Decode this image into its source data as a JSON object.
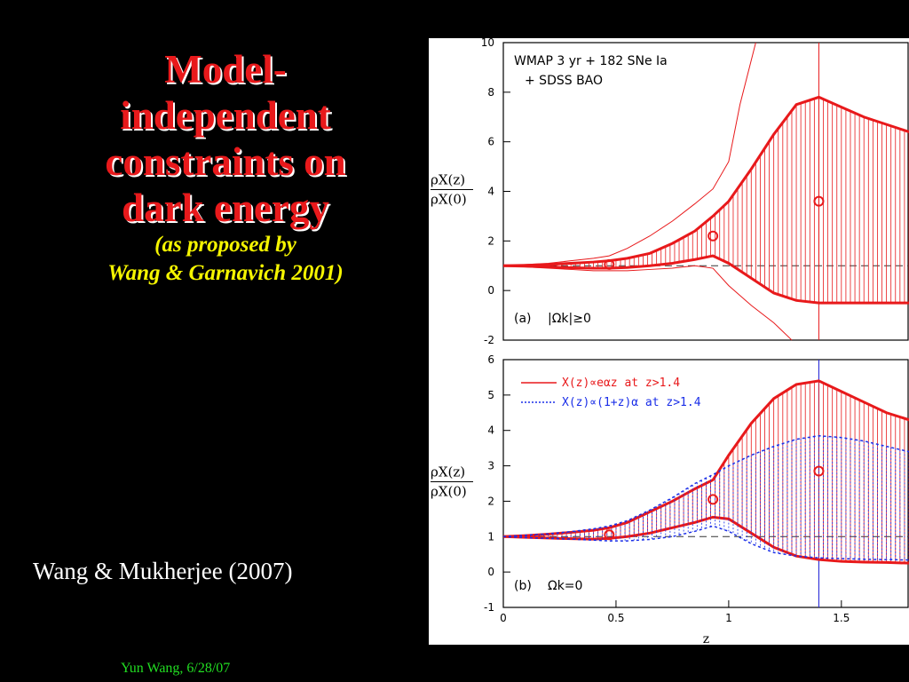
{
  "title_lines": [
    "Model-",
    "independent",
    "constraints on",
    "dark energy"
  ],
  "subtitle_lines": [
    "(as proposed by",
    "Wang & Garnavich 2001)"
  ],
  "citation": "Wang & Mukherjee (2007)",
  "footer": "Yun Wang,  6/28/07",
  "colors": {
    "title": "#e8191b",
    "subtitle": "#f5f500",
    "footer": "#22dd22",
    "series_red": "#e8191b",
    "series_blue": "#1a2ee8"
  },
  "chart_data": [
    {
      "type": "line",
      "panel": "(a)",
      "panel_label": "|Ωk|≥0",
      "annotation_lines": [
        "WMAP 3 yr + 182 SNe Ia",
        "+ SDSS BAO"
      ],
      "ylabel_num": "ρX(z)",
      "ylabel_den": "ρX(0)",
      "xlim": [
        0,
        1.8
      ],
      "ylim": [
        -2,
        10
      ],
      "yticks": [
        -2,
        0,
        2,
        4,
        6,
        8,
        10
      ],
      "reference_line": 1,
      "series": [
        {
          "color": "#e8191b",
          "x": [
            0,
            0.1,
            0.2,
            0.3,
            0.4,
            0.47,
            0.55,
            0.65,
            0.75,
            0.85,
            0.93,
            1.0,
            1.1,
            1.2,
            1.3,
            1.4,
            1.5,
            1.6,
            1.7,
            1.8
          ],
          "upper68": [
            1.0,
            1.02,
            1.05,
            1.1,
            1.15,
            1.2,
            1.3,
            1.5,
            1.9,
            2.4,
            3.0,
            3.6,
            4.9,
            6.3,
            7.5,
            7.8,
            7.4,
            7.0,
            6.7,
            6.4
          ],
          "lower68": [
            1.0,
            0.98,
            0.95,
            0.92,
            0.9,
            0.9,
            0.93,
            1.0,
            1.1,
            1.25,
            1.4,
            1.1,
            0.5,
            -0.1,
            -0.4,
            -0.5,
            -0.5,
            -0.5,
            -0.5,
            -0.5
          ],
          "upper95": [
            1.0,
            1.05,
            1.1,
            1.2,
            1.3,
            1.4,
            1.7,
            2.2,
            2.8,
            3.5,
            4.1,
            5.2,
            7.5,
            10
          ],
          "x95": [
            0,
            0.1,
            0.2,
            0.3,
            0.4,
            0.47,
            0.55,
            0.65,
            0.75,
            0.85,
            0.93,
            1.0,
            1.05,
            1.12
          ],
          "lower95": [
            1.0,
            0.95,
            0.9,
            0.85,
            0.8,
            0.8,
            0.8,
            0.85,
            0.9,
            1.0,
            0.9,
            0.2,
            -0.6,
            -1.3,
            -2.0
          ],
          "xlow95": [
            0,
            0.1,
            0.2,
            0.3,
            0.4,
            0.47,
            0.55,
            0.65,
            0.75,
            0.85,
            0.93,
            1.0,
            1.1,
            1.2,
            1.28
          ]
        }
      ],
      "points": [
        {
          "x": 0.47,
          "y": 1.05,
          "color": "#e8191b"
        },
        {
          "x": 0.93,
          "y": 2.2,
          "color": "#e8191b"
        },
        {
          "x": 1.4,
          "y": 3.6,
          "color": "#e8191b"
        }
      ]
    },
    {
      "type": "line",
      "panel": "(b)",
      "panel_label": "Ωk=0",
      "ylabel_num": "ρX(z)",
      "ylabel_den": "ρX(0)",
      "xlabel": "z",
      "xlim": [
        0,
        1.8
      ],
      "ylim": [
        -1,
        6
      ],
      "xticks": [
        0,
        0.5,
        1,
        1.5
      ],
      "yticks": [
        -1,
        0,
        1,
        2,
        3,
        4,
        5,
        6
      ],
      "reference_line": 1,
      "legend": [
        {
          "label": "X(z)∝eαz at z>1.4",
          "color": "#e8191b",
          "dash": "solid"
        },
        {
          "label": "X(z)∝(1+z)α at z>1.4",
          "color": "#1a2ee8",
          "dash": "dotted"
        }
      ],
      "series": [
        {
          "color": "#e8191b",
          "x": [
            0,
            0.1,
            0.2,
            0.3,
            0.4,
            0.47,
            0.55,
            0.65,
            0.75,
            0.85,
            0.93,
            1.0,
            1.1,
            1.2,
            1.3,
            1.4,
            1.5,
            1.6,
            1.7,
            1.8
          ],
          "upper68": [
            1.0,
            1.03,
            1.07,
            1.12,
            1.18,
            1.25,
            1.4,
            1.7,
            2.0,
            2.35,
            2.6,
            3.3,
            4.2,
            4.9,
            5.3,
            5.4,
            5.1,
            4.8,
            4.5,
            4.3
          ],
          "lower68": [
            1.0,
            0.98,
            0.96,
            0.94,
            0.93,
            0.95,
            1.0,
            1.1,
            1.25,
            1.4,
            1.55,
            1.5,
            1.1,
            0.7,
            0.45,
            0.35,
            0.3,
            0.28,
            0.27,
            0.25
          ]
        },
        {
          "color": "#1a2ee8",
          "x": [
            0,
            0.1,
            0.2,
            0.3,
            0.4,
            0.47,
            0.55,
            0.65,
            0.75,
            0.85,
            0.93,
            1.0,
            1.1,
            1.2,
            1.3,
            1.4,
            1.5,
            1.6,
            1.7,
            1.8
          ],
          "upper68": [
            1.0,
            1.04,
            1.08,
            1.14,
            1.22,
            1.3,
            1.45,
            1.75,
            2.1,
            2.5,
            2.75,
            3.0,
            3.3,
            3.55,
            3.75,
            3.85,
            3.8,
            3.7,
            3.55,
            3.4
          ],
          "lower68": [
            1.0,
            0.97,
            0.95,
            0.93,
            0.9,
            0.88,
            0.88,
            0.92,
            1.0,
            1.15,
            1.3,
            1.15,
            0.8,
            0.55,
            0.45,
            0.4,
            0.38,
            0.36,
            0.35,
            0.34
          ]
        }
      ],
      "points": [
        {
          "x": 0.47,
          "y": 1.05,
          "color": "#e8191b"
        },
        {
          "x": 0.93,
          "y": 2.05,
          "color": "#e8191b"
        },
        {
          "x": 1.4,
          "y": 2.85,
          "color": "#e8191b"
        }
      ]
    }
  ]
}
